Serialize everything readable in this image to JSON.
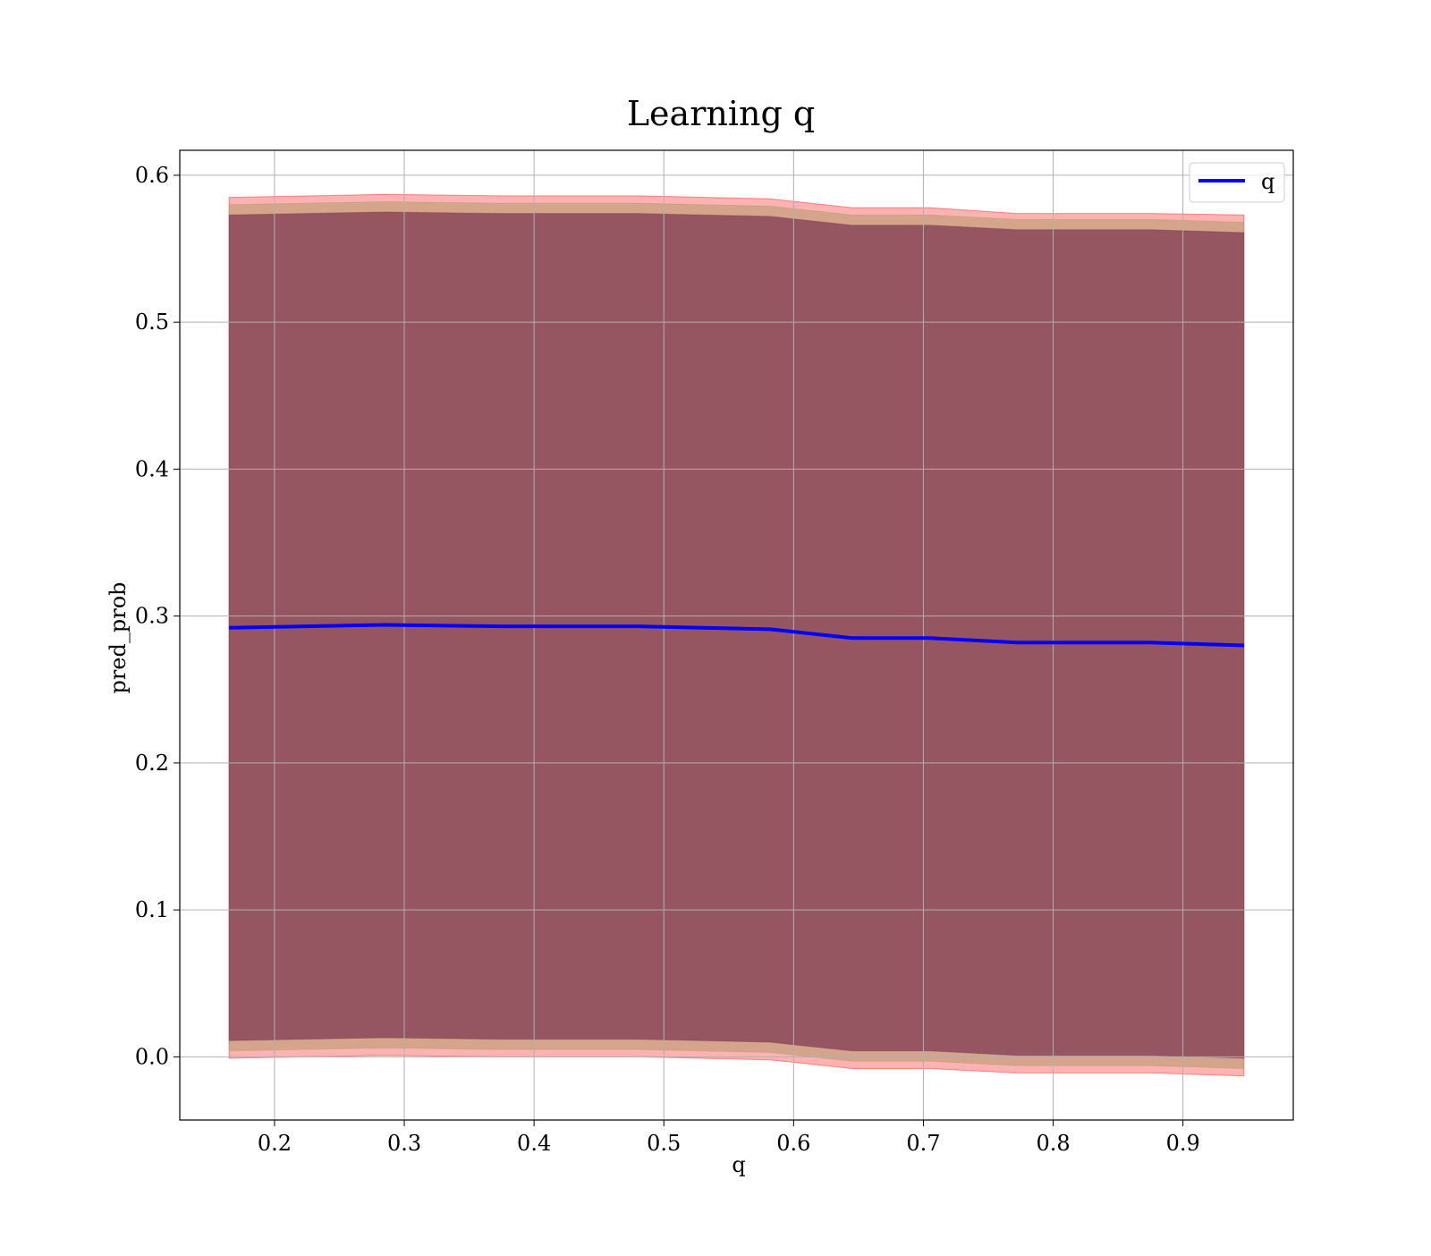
{
  "chart_data": {
    "type": "line",
    "title": "Learning q",
    "xlabel": "q",
    "ylabel": "pred_prob",
    "xlim": [
      0.127,
      0.985
    ],
    "ylim": [
      -0.043,
      0.617
    ],
    "x_ticks": [
      0.2,
      0.3,
      0.4,
      0.5,
      0.6,
      0.7,
      0.8,
      0.9
    ],
    "y_ticks": [
      0.0,
      0.1,
      0.2,
      0.3,
      0.4,
      0.5,
      0.6
    ],
    "x_tick_labels": [
      "0.2",
      "0.3",
      "0.4",
      "0.5",
      "0.6",
      "0.7",
      "0.8",
      "0.9"
    ],
    "y_tick_labels": [
      "0.0",
      "0.1",
      "0.2",
      "0.3",
      "0.4",
      "0.5",
      "0.6"
    ],
    "grid": true,
    "legend_position": "top-right",
    "x": [
      0.165,
      0.285,
      0.375,
      0.48,
      0.582,
      0.645,
      0.705,
      0.772,
      0.875,
      0.947
    ],
    "series": [
      {
        "name": "q",
        "color": "#0000ff",
        "values": [
          0.292,
          0.294,
          0.293,
          0.293,
          0.291,
          0.285,
          0.285,
          0.282,
          0.282,
          0.28
        ]
      }
    ],
    "bands": [
      {
        "color": "#ff0000",
        "opacity": 0.3,
        "lower": [
          -0.001,
          0.001,
          0.0,
          0.0,
          -0.002,
          -0.008,
          -0.008,
          -0.011,
          -0.011,
          -0.013
        ],
        "upper": [
          0.585,
          0.587,
          0.586,
          0.586,
          0.584,
          0.578,
          0.578,
          0.574,
          0.574,
          0.573
        ]
      },
      {
        "color": "#b09a6a",
        "opacity": 0.55,
        "lower": [
          0.004,
          0.006,
          0.005,
          0.005,
          0.003,
          -0.003,
          -0.003,
          -0.006,
          -0.006,
          -0.008
        ],
        "upper": [
          0.58,
          0.582,
          0.581,
          0.581,
          0.579,
          0.573,
          0.573,
          0.57,
          0.57,
          0.568
        ]
      },
      {
        "color": "#7a3550",
        "opacity": 0.7,
        "lower": [
          0.011,
          0.013,
          0.012,
          0.012,
          0.01,
          0.004,
          0.004,
          0.001,
          0.001,
          -0.001
        ],
        "upper": [
          0.573,
          0.575,
          0.574,
          0.574,
          0.572,
          0.566,
          0.566,
          0.563,
          0.563,
          0.561
        ]
      }
    ]
  }
}
